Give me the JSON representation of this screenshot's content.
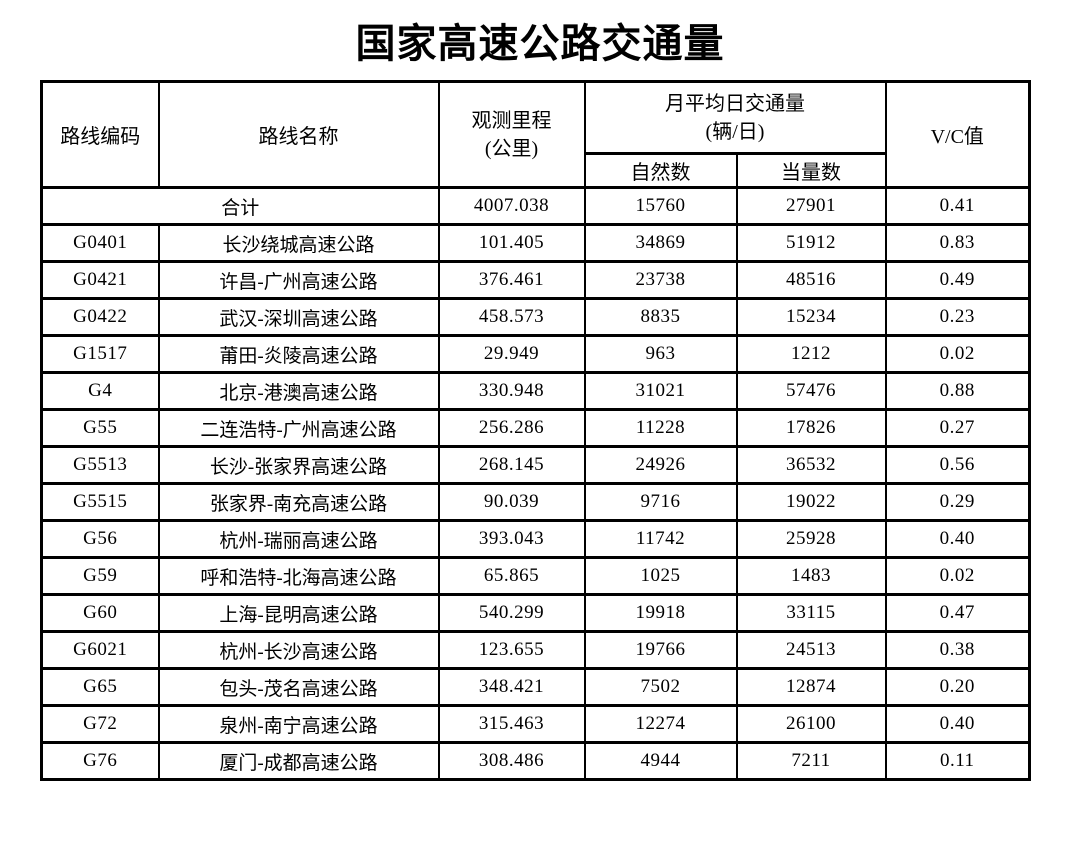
{
  "page": {
    "title": "国家高速公路交通量"
  },
  "table": {
    "headers": {
      "route_code": "路线编码",
      "route_name": "路线名称",
      "mileage": "观测里程\n(公里)",
      "traffic_group": "月平均日交通量\n(辆/日)",
      "natural": "自然数",
      "equivalent": "当量数",
      "vc": "V/C值"
    },
    "total": {
      "label": "合计",
      "mileage": "4007.038",
      "natural": "15760",
      "equivalent": "27901",
      "vc": "0.41"
    },
    "rows": [
      {
        "code": "G0401",
        "name": "长沙绕城高速公路",
        "mileage": "101.405",
        "natural": "34869",
        "equivalent": "51912",
        "vc": "0.83"
      },
      {
        "code": "G0421",
        "name": "许昌-广州高速公路",
        "mileage": "376.461",
        "natural": "23738",
        "equivalent": "48516",
        "vc": "0.49"
      },
      {
        "code": "G0422",
        "name": "武汉-深圳高速公路",
        "mileage": "458.573",
        "natural": "8835",
        "equivalent": "15234",
        "vc": "0.23"
      },
      {
        "code": "G1517",
        "name": "莆田-炎陵高速公路",
        "mileage": "29.949",
        "natural": "963",
        "equivalent": "1212",
        "vc": "0.02"
      },
      {
        "code": "G4",
        "name": "北京-港澳高速公路",
        "mileage": "330.948",
        "natural": "31021",
        "equivalent": "57476",
        "vc": "0.88"
      },
      {
        "code": "G55",
        "name": "二连浩特-广州高速公路",
        "mileage": "256.286",
        "natural": "11228",
        "equivalent": "17826",
        "vc": "0.27"
      },
      {
        "code": "G5513",
        "name": "长沙-张家界高速公路",
        "mileage": "268.145",
        "natural": "24926",
        "equivalent": "36532",
        "vc": "0.56"
      },
      {
        "code": "G5515",
        "name": "张家界-南充高速公路",
        "mileage": "90.039",
        "natural": "9716",
        "equivalent": "19022",
        "vc": "0.29"
      },
      {
        "code": "G56",
        "name": "杭州-瑞丽高速公路",
        "mileage": "393.043",
        "natural": "11742",
        "equivalent": "25928",
        "vc": "0.40"
      },
      {
        "code": "G59",
        "name": "呼和浩特-北海高速公路",
        "mileage": "65.865",
        "natural": "1025",
        "equivalent": "1483",
        "vc": "0.02"
      },
      {
        "code": "G60",
        "name": "上海-昆明高速公路",
        "mileage": "540.299",
        "natural": "19918",
        "equivalent": "33115",
        "vc": "0.47"
      },
      {
        "code": "G6021",
        "name": "杭州-长沙高速公路",
        "mileage": "123.655",
        "natural": "19766",
        "equivalent": "24513",
        "vc": "0.38"
      },
      {
        "code": "G65",
        "name": "包头-茂名高速公路",
        "mileage": "348.421",
        "natural": "7502",
        "equivalent": "12874",
        "vc": "0.20"
      },
      {
        "code": "G72",
        "name": "泉州-南宁高速公路",
        "mileage": "315.463",
        "natural": "12274",
        "equivalent": "26100",
        "vc": "0.40"
      },
      {
        "code": "G76",
        "name": "厦门-成都高速公路",
        "mileage": "308.486",
        "natural": "4944",
        "equivalent": "7211",
        "vc": "0.11"
      }
    ]
  }
}
